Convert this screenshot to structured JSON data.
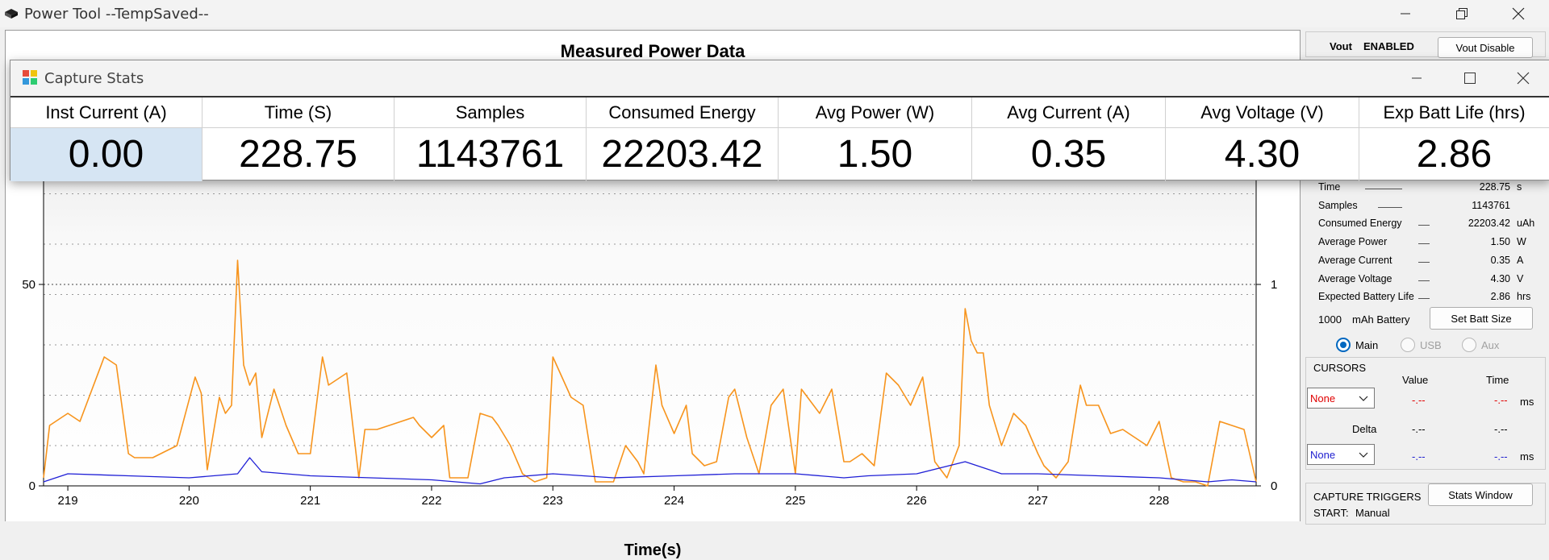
{
  "window": {
    "title": "Power Tool --TempSaved--"
  },
  "plot": {
    "title": "Measured Power Data",
    "xlabel": "Time(s)",
    "left_ticks": [
      "0",
      "50"
    ],
    "right_ticks": [
      "0",
      "1"
    ],
    "x_ticks": [
      "219",
      "220",
      "221",
      "222",
      "223",
      "224",
      "225",
      "226",
      "227",
      "228"
    ]
  },
  "chart_data": {
    "type": "line",
    "x_range": [
      218.8,
      228.8
    ],
    "y_left_range": [
      0,
      100
    ],
    "y_right_range": [
      0,
      2
    ],
    "grid": "dotted horizontal",
    "series": [
      {
        "axis": "left",
        "color": "#f7941d",
        "x": [
          218.8,
          218.85,
          218.95,
          219.0,
          219.1,
          219.3,
          219.4,
          219.5,
          219.55,
          219.7,
          219.9,
          220.05,
          220.1,
          220.15,
          220.25,
          220.3,
          220.35,
          220.4,
          220.45,
          220.5,
          220.55,
          220.6,
          220.7,
          220.8,
          220.9,
          221.0,
          221.1,
          221.15,
          221.3,
          221.4,
          221.45,
          221.55,
          221.65,
          221.75,
          221.85,
          221.9,
          222.0,
          222.1,
          222.15,
          222.3,
          222.4,
          222.5,
          222.55,
          222.65,
          222.75,
          222.85,
          222.95,
          223.0,
          223.15,
          223.25,
          223.35,
          223.5,
          223.6,
          223.7,
          223.75,
          223.85,
          223.9,
          224.0,
          224.1,
          224.15,
          224.25,
          224.35,
          224.45,
          224.5,
          224.6,
          224.7,
          224.8,
          224.9,
          225.0,
          225.05,
          225.2,
          225.3,
          225.4,
          225.45,
          225.55,
          225.65,
          225.75,
          225.85,
          225.95,
          226.05,
          226.15,
          226.25,
          226.35,
          226.4,
          226.45,
          226.5,
          226.55,
          226.6,
          226.7,
          226.8,
          226.9,
          227.0,
          227.05,
          227.15,
          227.25,
          227.35,
          227.4,
          227.5,
          227.6,
          227.7,
          227.8,
          227.9,
          228.0,
          228.1,
          228.2,
          228.3,
          228.4,
          228.5,
          228.6,
          228.7,
          228.8
        ],
        "y": [
          2,
          15,
          17,
          18,
          16,
          32,
          30,
          8,
          7,
          7,
          10,
          27,
          23,
          4,
          22,
          18,
          20,
          56,
          30,
          25,
          28,
          12,
          24,
          15,
          8,
          8,
          32,
          25,
          28,
          2,
          14,
          14,
          15,
          16,
          17,
          15,
          12,
          15,
          2,
          2,
          18,
          17,
          15,
          10,
          3,
          1,
          2,
          32,
          22,
          20,
          1,
          1,
          10,
          6,
          3,
          30,
          20,
          13,
          20,
          8,
          5,
          6,
          22,
          24,
          12,
          3,
          20,
          24,
          3,
          24,
          18,
          24,
          6,
          6,
          8,
          5,
          28,
          25,
          20,
          27,
          6,
          2,
          10,
          44,
          36,
          33,
          33,
          20,
          10,
          18,
          15,
          8,
          5,
          2,
          6,
          25,
          20,
          20,
          13,
          14,
          12,
          10,
          16,
          2,
          1,
          1,
          0,
          16,
          15,
          14,
          1
        ],
        "name": ""
      },
      {
        "axis": "right",
        "color": "#1f1fd6",
        "x": [
          218.8,
          219.0,
          219.5,
          220.0,
          220.4,
          220.5,
          220.6,
          221.0,
          221.5,
          222.0,
          222.4,
          222.6,
          223.0,
          223.5,
          224.0,
          224.5,
          225.0,
          225.4,
          225.6,
          226.0,
          226.4,
          226.5,
          226.7,
          227.0,
          227.5,
          228.0,
          228.4,
          228.6,
          228.8
        ],
        "y": [
          0.02,
          0.06,
          0.05,
          0.04,
          0.06,
          0.14,
          0.07,
          0.05,
          0.04,
          0.03,
          0.01,
          0.04,
          0.06,
          0.04,
          0.05,
          0.06,
          0.06,
          0.04,
          0.05,
          0.06,
          0.12,
          0.1,
          0.06,
          0.06,
          0.05,
          0.04,
          0.02,
          0.03,
          0.02
        ],
        "name": ""
      }
    ]
  },
  "right_panel": {
    "vout_label": "Vout",
    "vout_status": "ENABLED",
    "vout_disable_btn": "Vout Disable",
    "stats": [
      {
        "label": "Time",
        "value": "228.75",
        "unit": "s"
      },
      {
        "label": "Samples",
        "value": "1143761",
        "unit": ""
      },
      {
        "label": "Consumed Energy",
        "value": "22203.42",
        "unit": "uAh"
      },
      {
        "label": "Average Power",
        "value": "1.50",
        "unit": "W"
      },
      {
        "label": "Average Current",
        "value": "0.35",
        "unit": "A"
      },
      {
        "label": "Average Voltage",
        "value": "4.30",
        "unit": "V"
      },
      {
        "label": "Expected Battery Life",
        "value": "2.86",
        "unit": "hrs"
      }
    ],
    "battery_value": "1000",
    "battery_label": "mAh Battery",
    "set_batt_btn": "Set Batt Size",
    "radio_main": "Main",
    "radio_usb": "USB",
    "radio_aux": "Aux",
    "cursors_title": "CURSORS",
    "col_value": "Value",
    "col_time": "Time",
    "cursor1_select": "None",
    "cursor1_value": "-.--",
    "cursor1_time": "-.--",
    "unit_ms": "ms",
    "delta_label": "Delta",
    "delta_value": "-.--",
    "delta_time": "-.--",
    "cursor2_select": "None",
    "cursor2_value": "-.--",
    "cursor2_time": "-.--",
    "triggers_title": "CAPTURE TRIGGERS",
    "stats_window_btn": "Stats Window",
    "start_label": "START:",
    "start_value": "Manual"
  },
  "dialog": {
    "title": "Capture Stats",
    "columns": [
      {
        "header": "Inst Current (A)",
        "value": "0.00"
      },
      {
        "header": "Time (S)",
        "value": "228.75"
      },
      {
        "header": "Samples",
        "value": "1143761"
      },
      {
        "header": "Consumed Energy",
        "value": "22203.42"
      },
      {
        "header": "Avg Power (W)",
        "value": "1.50"
      },
      {
        "header": "Avg Current (A)",
        "value": "0.35"
      },
      {
        "header": "Avg Voltage (V)",
        "value": "4.30"
      },
      {
        "header": "Exp Batt Life (hrs)",
        "value": "2.86"
      }
    ]
  }
}
